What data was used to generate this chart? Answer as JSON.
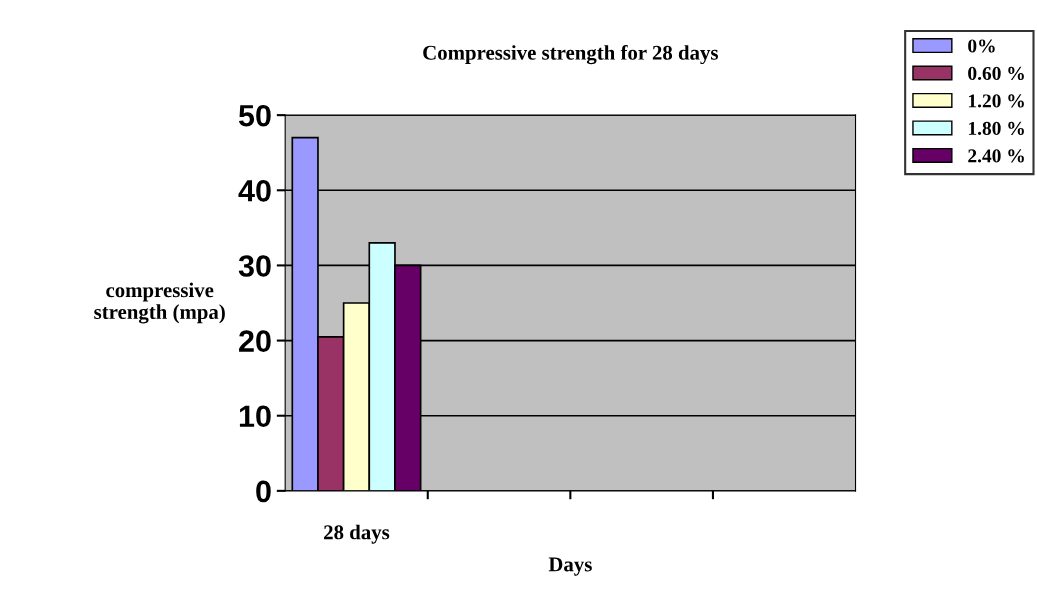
{
  "chart_data": {
    "type": "bar",
    "title": "Compressive strength for 28 days",
    "xlabel": "Days",
    "ylabel": "compressive\nstrength (mpa)",
    "categories": [
      "28 days",
      null,
      null,
      null
    ],
    "series": [
      {
        "name": "0%",
        "color": "#9999ff",
        "values": [
          47,
          null,
          null,
          null
        ]
      },
      {
        "name": "0.60 %",
        "color": "#993366",
        "values": [
          20.5,
          null,
          null,
          null
        ]
      },
      {
        "name": "1.20 %",
        "color": "#ffffcc",
        "values": [
          25,
          null,
          null,
          null
        ]
      },
      {
        "name": "1.80 %",
        "color": "#ccffff",
        "values": [
          33,
          null,
          null,
          null
        ]
      },
      {
        "name": "2.40 %",
        "color": "#660066",
        "values": [
          30,
          null,
          null,
          null
        ]
      }
    ],
    "ylim": [
      0,
      50
    ],
    "yticks": [
      0,
      10,
      20,
      30,
      40,
      50
    ],
    "grid": "y",
    "legend": "right"
  }
}
